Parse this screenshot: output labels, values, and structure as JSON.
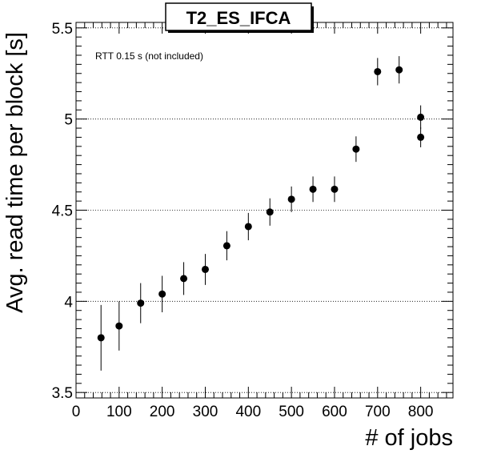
{
  "chart_data": {
    "type": "scatter",
    "title": "T2_ES_IFCA",
    "xlabel": "# of jobs",
    "ylabel": "Avg. read time per block [s]",
    "annotation": "RTT 0.15 s (not included)",
    "xlim": [
      0,
      875
    ],
    "ylim": [
      3.47,
      5.53
    ],
    "x_ticks": [
      0,
      100,
      200,
      300,
      400,
      500,
      600,
      700,
      800
    ],
    "y_ticks": [
      3.5,
      4,
      4.5,
      5,
      5.5
    ],
    "y_tick_labels": [
      "3.5",
      "4",
      "4.5",
      "5",
      "5.5"
    ],
    "grid": "horizontal dotted at major y ticks",
    "points": [
      {
        "x": 58,
        "y": 3.8,
        "err": 0.18
      },
      {
        "x": 100,
        "y": 3.865,
        "err": 0.135
      },
      {
        "x": 150,
        "y": 3.99,
        "err": 0.11
      },
      {
        "x": 200,
        "y": 4.04,
        "err": 0.1
      },
      {
        "x": 250,
        "y": 4.125,
        "err": 0.09
      },
      {
        "x": 300,
        "y": 4.175,
        "err": 0.085
      },
      {
        "x": 350,
        "y": 4.305,
        "err": 0.08
      },
      {
        "x": 400,
        "y": 4.41,
        "err": 0.075
      },
      {
        "x": 450,
        "y": 4.49,
        "err": 0.075
      },
      {
        "x": 500,
        "y": 4.56,
        "err": 0.07
      },
      {
        "x": 550,
        "y": 4.615,
        "err": 0.07
      },
      {
        "x": 600,
        "y": 4.615,
        "err": 0.07
      },
      {
        "x": 650,
        "y": 4.835,
        "err": 0.07
      },
      {
        "x": 700,
        "y": 5.26,
        "err": 0.075
      },
      {
        "x": 750,
        "y": 5.27,
        "err": 0.075
      },
      {
        "x": 800,
        "y": 5.01,
        "err": 0.065
      },
      {
        "x": 800,
        "y": 4.9,
        "err": 0.055
      }
    ],
    "marker_color": "#000000"
  }
}
